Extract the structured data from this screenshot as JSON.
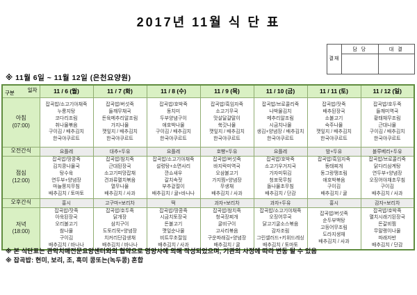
{
  "title": "2017년 11월 식 단 표",
  "approval": {
    "stamp_label": "결재",
    "columns": [
      "담 당",
      "대 결"
    ]
  },
  "subtitle": "※ 11월 6일 ~ 11월 12일 (은천요양원)",
  "corner": {
    "top": "일자",
    "bottom": "구분"
  },
  "days": [
    "11 / 6 (월)",
    "11 / 7 (화)",
    "11 / 8 (수)",
    "11 / 9 (목)",
    "11 / 10 (금)",
    "11 / 11 (토)",
    "11 / 12 (일)"
  ],
  "rows": [
    {
      "label": "아침",
      "time": "(07:00)",
      "type": "meal",
      "cells": [
        [
          "잡곡밥/소고기야채죽",
          "누룽지탕",
          "코다리조림",
          "취나물볶음",
          "구이김 / 배추김치",
          "한국야쿠르트"
        ],
        [
          "잡곡밥/버섯죽",
          "들깨무채국",
          "돈육메추리알조림",
          "가지나물",
          "깻잎지 / 배추김치",
          "한국야쿠르트"
        ],
        [
          "잡곡밥/호박죽",
          "동치미",
          "두부양념구이",
          "애호박나물",
          "구이김 / 배추김치",
          "한국야쿠르트"
        ],
        [
          "잡곡밥/흑임자죽",
          "소고기무국",
          "맛살달걀말이",
          "쑥갓나물",
          "깻잎지 / 배추김치",
          "한국야쿠르트"
        ],
        [
          "잡곡밥/브로콜리죽",
          "나박물김치",
          "메추리알조림",
          "시금치나물",
          "생김+양념장 / 배추김치",
          "한국야쿠르트"
        ],
        [
          "잡곡밥/잣죽",
          "배추된장국",
          "소불고기",
          "숙주나물",
          "깻잎지 / 배추김치",
          "한국야쿠르트"
        ],
        [
          "잡곡밥/호두죽",
          "들깨미역국",
          "황태채무조림",
          "근대나물",
          "구이김 / 배추김치",
          "한국야쿠르트"
        ]
      ]
    },
    {
      "label": "오전간식",
      "time": "",
      "type": "snack",
      "cells": [
        "요플레",
        "대추+두유",
        "요플레",
        "호빵+두유",
        "요플레",
        "밤+두유",
        "블루베리+두유"
      ]
    },
    {
      "label": "점심",
      "time": "(12:00)",
      "type": "meal",
      "cells": [
        [
          "잡곡밥/땅콩죽",
          "김치콩나물국",
          "탕수육",
          "연두부+양념장",
          "마늘쫑지무침",
          "배추김치 / 토마토"
        ],
        [
          "잡곡밥/참치죽",
          "근대된장국",
          "소고기피망잡채",
          "견과류멸치볶음",
          "열무나물",
          "배추김치 / 사과"
        ],
        [
          "잡곡밥/소고기야채죽",
          "설렁탕+소면사리",
          "깐쇼새우",
          "갈치속젓",
          "부추겉절이",
          "배추김치 / 귤+바나나"
        ],
        [
          "잡곡밥/버섯죽",
          "바지락미역국",
          "오삼불고기",
          "가지찜+양념장",
          "무생채",
          "배추김치 / 사과"
        ],
        [
          "잡곡밥/호박죽",
          "소고기우거지국",
          "가자미튀김",
          "청포묵무침",
          "돌나물초무침",
          "배추김치 / 단감"
        ],
        [
          "잡곡밥/흑임자죽",
          "동태찌개",
          "동그랑땡조림",
          "애호박볶음",
          "구이김",
          "배추김치 / 귤"
        ],
        [
          "잡곡밥/브로콜리죽",
          "닭다리삼계탕",
          "연두부+양념장",
          "오징어야채초무침",
          "구이김",
          "배추김치 / 사과"
        ]
      ]
    },
    {
      "label": "오후간식",
      "time": "",
      "type": "snack",
      "cells": [
        "홍시",
        "고구마+보리차",
        "떡",
        "과자+보리차",
        "과자+두유",
        "홍시",
        "감자+보리차"
      ]
    },
    {
      "label": "저녁",
      "time": "(18:00)",
      "type": "meal",
      "cells": [
        [
          "잡곡밥/잣죽",
          "아욱된장국",
          "오리불고기",
          "참나물",
          "구이김",
          "배추김치 / 바나나"
        ],
        [
          "잡곡밥/호두죽",
          "닭개장",
          "삼치구이",
          "도토리묵+양념장",
          "치커리단감생채",
          "배추김치 / 바나나"
        ],
        [
          "잡곡밥/땅콩죽",
          "시금치토장국",
          "돈불고기",
          "깻잎순나물",
          "비트무초절임",
          "배추김치 / 사과"
        ],
        [
          "잡곡밥/참치죽",
          "청국장찌개",
          "굴비구이",
          "고사리볶음",
          "구운파래김+양념장",
          "배추김치 / 귤"
        ],
        [
          "잡곡밥/소고기야채죽",
          "오징어무국",
          "닭고기굴소스볶음",
          "감자조림",
          "그린샐러드+키위드레싱",
          "배추김치 / 토마토"
        ],
        [
          "잡곡밥/버섯죽",
          "순두부백탕",
          "고등어무조림",
          "도라지생채",
          "배추김치 / 사과"
        ],
        [
          "잡곡밥/호박죽",
          "멸치시래기된장국",
          "돈갈비찜",
          "무말랭이나물",
          "파래자반",
          "배추김치 / 단감"
        ]
      ]
    }
  ],
  "notes": [
    "※ 본 식단표는 관악치매전문요양센터와의 협약으로 영양사에 의해 작성되었으며, 기관의 사정에 따라 변동 될 수 있음",
    "※ 잡곡밥: 현미, 보리, 조, 흑미 콩또는(녹두콩) 혼합"
  ],
  "colors": {
    "header_bg": "#d9f0c3",
    "snack_bg": "#ececec",
    "grid": "#8fac71",
    "outer": "#5f8c3e"
  }
}
